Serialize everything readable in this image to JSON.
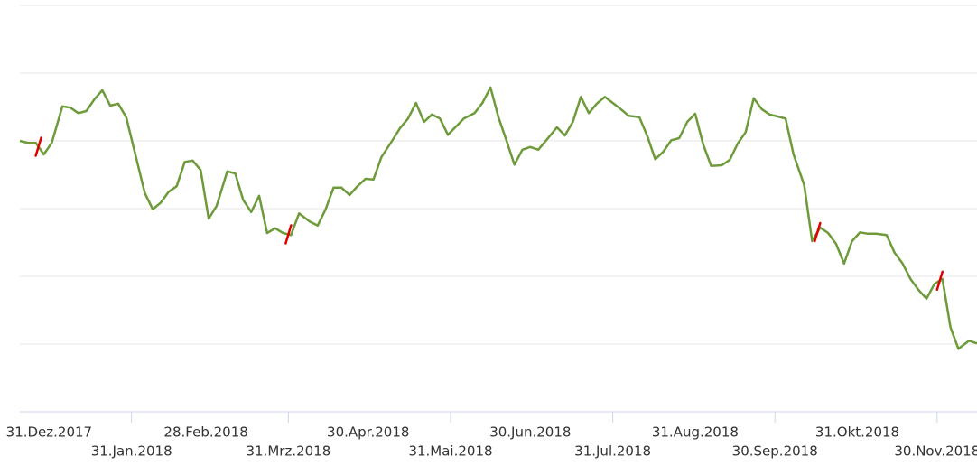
{
  "chart_data": {
    "type": "line",
    "x": [
      "2017-12-20",
      "2017-12-23",
      "2017-12-26",
      "2017-12-29",
      "2018-01-01",
      "2018-01-05",
      "2018-01-08",
      "2018-01-11",
      "2018-01-14",
      "2018-01-17",
      "2018-01-20",
      "2018-01-23",
      "2018-01-26",
      "2018-01-29",
      "2018-02-01",
      "2018-02-05",
      "2018-02-08",
      "2018-02-11",
      "2018-02-14",
      "2018-02-17",
      "2018-02-20",
      "2018-02-23",
      "2018-02-26",
      "2018-03-01",
      "2018-03-04",
      "2018-03-08",
      "2018-03-11",
      "2018-03-14",
      "2018-03-17",
      "2018-03-20",
      "2018-03-23",
      "2018-03-26",
      "2018-03-29",
      "2018-04-01",
      "2018-04-04",
      "2018-04-08",
      "2018-04-11",
      "2018-04-14",
      "2018-04-17",
      "2018-04-20",
      "2018-04-23",
      "2018-04-26",
      "2018-04-29",
      "2018-05-02",
      "2018-05-05",
      "2018-05-09",
      "2018-05-12",
      "2018-05-15",
      "2018-05-18",
      "2018-05-21",
      "2018-05-24",
      "2018-05-27",
      "2018-05-30",
      "2018-06-02",
      "2018-06-05",
      "2018-06-09",
      "2018-06-12",
      "2018-06-15",
      "2018-06-18",
      "2018-06-21",
      "2018-06-24",
      "2018-06-27",
      "2018-06-30",
      "2018-07-03",
      "2018-07-06",
      "2018-07-10",
      "2018-07-13",
      "2018-07-16",
      "2018-07-19",
      "2018-07-22",
      "2018-07-25",
      "2018-07-28",
      "2018-07-31",
      "2018-08-03",
      "2018-08-06",
      "2018-08-10",
      "2018-08-13",
      "2018-08-16",
      "2018-08-19",
      "2018-08-22",
      "2018-08-25",
      "2018-08-28",
      "2018-08-31",
      "2018-09-03",
      "2018-09-06",
      "2018-09-10",
      "2018-09-13",
      "2018-09-16",
      "2018-09-19",
      "2018-09-22",
      "2018-09-25",
      "2018-09-28",
      "2018-10-01",
      "2018-10-04",
      "2018-10-07",
      "2018-10-11",
      "2018-10-14",
      "2018-10-17",
      "2018-10-20",
      "2018-10-23",
      "2018-10-26",
      "2018-10-29",
      "2018-11-01",
      "2018-11-04",
      "2018-11-07",
      "2018-11-11",
      "2018-11-14",
      "2018-11-17",
      "2018-11-20",
      "2018-11-23",
      "2018-11-26",
      "2018-11-29",
      "2018-12-02",
      "2018-12-05",
      "2018-12-08",
      "2018-12-12",
      "2018-12-15"
    ],
    "values": [
      4.0,
      3.97,
      3.97,
      3.8,
      3.97,
      4.51,
      4.49,
      4.41,
      4.44,
      4.61,
      4.75,
      4.52,
      4.55,
      4.35,
      3.87,
      3.23,
      2.99,
      3.09,
      3.25,
      3.33,
      3.69,
      3.71,
      3.57,
      2.85,
      3.04,
      3.55,
      3.52,
      3.13,
      2.95,
      3.19,
      2.64,
      2.71,
      2.64,
      2.61,
      2.93,
      2.81,
      2.75,
      2.99,
      3.31,
      3.31,
      3.2,
      3.33,
      3.44,
      3.43,
      3.76,
      4.0,
      4.19,
      4.33,
      4.56,
      4.28,
      4.39,
      4.33,
      4.09,
      4.21,
      4.33,
      4.41,
      4.56,
      4.79,
      4.35,
      4.01,
      3.65,
      3.87,
      3.91,
      3.87,
      4.01,
      4.2,
      4.08,
      4.28,
      4.65,
      4.41,
      4.55,
      4.65,
      4.56,
      4.47,
      4.37,
      4.35,
      4.07,
      3.73,
      3.84,
      4.01,
      4.04,
      4.28,
      4.4,
      3.95,
      3.63,
      3.64,
      3.72,
      3.96,
      4.13,
      4.63,
      4.47,
      4.39,
      4.36,
      4.33,
      3.8,
      3.35,
      2.52,
      2.72,
      2.64,
      2.48,
      2.19,
      2.52,
      2.65,
      2.63,
      2.63,
      2.61,
      2.35,
      2.19,
      1.96,
      1.8,
      1.67,
      1.89,
      1.96,
      1.25,
      0.93,
      1.05,
      1.01
    ],
    "color": "#6e9b3a",
    "markers": [
      "2017-12-27",
      "2018-03-31",
      "2018-10-16",
      "2018-12-01"
    ],
    "marker_color": "#e00000",
    "xlim": [
      "2017-12-20",
      "2018-12-15"
    ],
    "xticks": [
      {
        "value": "2017-12-31",
        "label": "31.Dez.2017"
      },
      {
        "value": "2018-01-31",
        "label": "31.Jan.2018"
      },
      {
        "value": "2018-02-28",
        "label": "28.Feb.2018"
      },
      {
        "value": "2018-03-31",
        "label": "31.Mrz.2018"
      },
      {
        "value": "2018-04-30",
        "label": "30.Apr.2018"
      },
      {
        "value": "2018-05-31",
        "label": "31.Mai.2018"
      },
      {
        "value": "2018-06-30",
        "label": "30.Jun.2018"
      },
      {
        "value": "2018-07-31",
        "label": "31.Jul.2018"
      },
      {
        "value": "2018-08-31",
        "label": "31.Aug.2018"
      },
      {
        "value": "2018-09-30",
        "label": "30.Sep.2018"
      },
      {
        "value": "2018-10-31",
        "label": "31.Okt.2018"
      },
      {
        "value": "2018-11-30",
        "label": "30.Nov.2018"
      }
    ],
    "ylim": [
      0,
      6
    ],
    "yticks": [
      1,
      2,
      3,
      4,
      5,
      6
    ],
    "grid": true
  }
}
